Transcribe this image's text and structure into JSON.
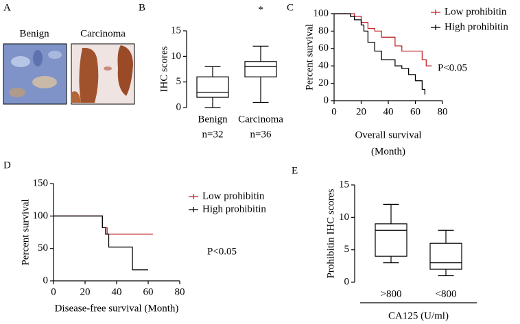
{
  "figure_a": {
    "label": "A",
    "images": [
      "Benign",
      "Carcinoma"
    ]
  },
  "chart_data": [
    {
      "type": "box",
      "label": "B",
      "ylabel": "IHC scores",
      "categories": [
        "Benign",
        "Carcinoma"
      ],
      "n_labels": [
        "n=32",
        "n=36"
      ],
      "stats": [
        [
          0,
          2,
          3,
          6,
          8
        ],
        [
          1,
          6,
          8,
          9,
          12
        ]
      ],
      "annotation": "*",
      "ylim": [
        0,
        15
      ],
      "yticks": [
        0,
        5,
        10,
        15
      ],
      "color": "#000000"
    },
    {
      "type": "step",
      "label": "C",
      "ylabel": "Percent survival",
      "xlabel": [
        "Overall survival",
        "(Month)"
      ],
      "annotation": "P<0.05",
      "xlim": [
        0,
        80
      ],
      "xticks": [
        0,
        20,
        40,
        60,
        80
      ],
      "ylim": [
        0,
        100
      ],
      "yticks": [
        0,
        20,
        40,
        60,
        80,
        100
      ],
      "series": [
        {
          "name": "Low prohibitin",
          "color": "#c0282d",
          "x": [
            0,
            10,
            15,
            20,
            25,
            30,
            35,
            45,
            50,
            55,
            65,
            68,
            72
          ],
          "values": [
            100,
            100,
            97,
            90,
            83,
            80,
            73,
            63,
            57,
            57,
            47,
            40,
            40
          ]
        },
        {
          "name": "High prohibitin",
          "color": "#000000",
          "x": [
            0,
            12,
            15,
            20,
            22,
            25,
            30,
            35,
            45,
            50,
            55,
            60,
            65,
            67
          ],
          "values": [
            100,
            97,
            93,
            87,
            80,
            67,
            57,
            47,
            40,
            37,
            30,
            23,
            13,
            7
          ]
        }
      ]
    },
    {
      "type": "step",
      "label": "D",
      "ylabel": "Percent survival",
      "xlabel": [
        "Disease-free survival (Month)"
      ],
      "annotation": "P<0.05",
      "xlim": [
        0,
        80
      ],
      "xticks": [
        0,
        20,
        40,
        60,
        80
      ],
      "ylim": [
        0,
        150
      ],
      "yticks": [
        0,
        50,
        100,
        150
      ],
      "series": [
        {
          "name": "Low prohibitin",
          "color": "#c0282d",
          "x": [
            0,
            30,
            31,
            34,
            63
          ],
          "values": [
            100,
            100,
            82,
            72,
            72
          ]
        },
        {
          "name": "High prohibitin",
          "color": "#000000",
          "x": [
            0,
            30,
            31,
            33,
            35,
            48,
            50,
            60
          ],
          "values": [
            100,
            100,
            82,
            72,
            52,
            52,
            17,
            17
          ]
        }
      ]
    },
    {
      "type": "box",
      "label": "E",
      "ylabel": "Prohibitin IHC scores",
      "categories": [
        ">800",
        "<800"
      ],
      "xlabel": [
        "CA125 (U/ml)"
      ],
      "stats": [
        [
          3,
          4,
          8,
          9,
          12
        ],
        [
          1,
          2,
          3,
          6,
          8
        ]
      ],
      "ylim": [
        0,
        15
      ],
      "yticks": [
        0,
        5,
        10,
        15
      ],
      "color": "#000000"
    }
  ]
}
